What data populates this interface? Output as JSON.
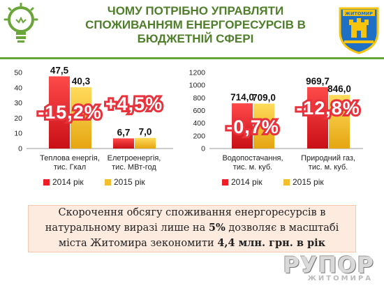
{
  "header": {
    "title_lines": [
      "ЧОМУ ПОТРІБНО УПРАВЛЯТИ",
      "СПОЖИВАННЯМ ЕНЕРГОРЕСУРСІВ В",
      "БЮДЖЕТНІЙ СФЕРІ"
    ],
    "crest_caption": "ЖИТОМИР"
  },
  "colors": {
    "series_2014": "#ee1c24",
    "series_2015": "#f3be2a",
    "title": "#4f7f2b",
    "badge": "#e8323c"
  },
  "chart_data": [
    {
      "type": "bar",
      "categories": [
        "Теплова енергія,\nтис. Гкал",
        "Елетроенергія,\nтис. МВт-год"
      ],
      "series": [
        {
          "name": "2014 рік",
          "values": [
            47.5,
            6.7
          ]
        },
        {
          "name": "2015 рік",
          "values": [
            40.3,
            7.0
          ]
        }
      ],
      "value_labels": [
        [
          "47,5",
          "6,7"
        ],
        [
          "40,3",
          "7,0"
        ]
      ],
      "ylim": [
        0,
        50
      ],
      "yticks": [
        0,
        10,
        20,
        30,
        40,
        50
      ],
      "change_labels": [
        "-15,2%",
        "+4,5%"
      ],
      "legend": "bottom"
    },
    {
      "type": "bar",
      "categories": [
        "Водопостачання,\nтис. м. куб.",
        "Природний газ,\nтис. м. куб."
      ],
      "series": [
        {
          "name": "2014 рік",
          "values": [
            714.0,
            969.7
          ]
        },
        {
          "name": "2015 рік",
          "values": [
            709.0,
            846.0
          ]
        }
      ],
      "value_labels": [
        [
          "714,0",
          "969,7"
        ],
        [
          "709,0",
          "846,0"
        ]
      ],
      "ylim": [
        0,
        1200
      ],
      "yticks": [
        0,
        200,
        400,
        600,
        800,
        1000,
        1200
      ],
      "change_labels": [
        "-0,7%",
        "-12,8%"
      ],
      "legend": "bottom"
    }
  ],
  "note": {
    "line1": "Скорочення обсягу споживання енергоресурсів в",
    "line2_pre": "натуральному виразі лише на ",
    "line2_bold": "5%",
    "line2_post": " дозволяє в масштабі",
    "line3_pre": "міста Житомира зекономити ",
    "line3_bold": "4,4 млн. грн. в рік"
  },
  "watermark": {
    "main": "РУПОР",
    "sub": "ЖИТОМИРА"
  }
}
